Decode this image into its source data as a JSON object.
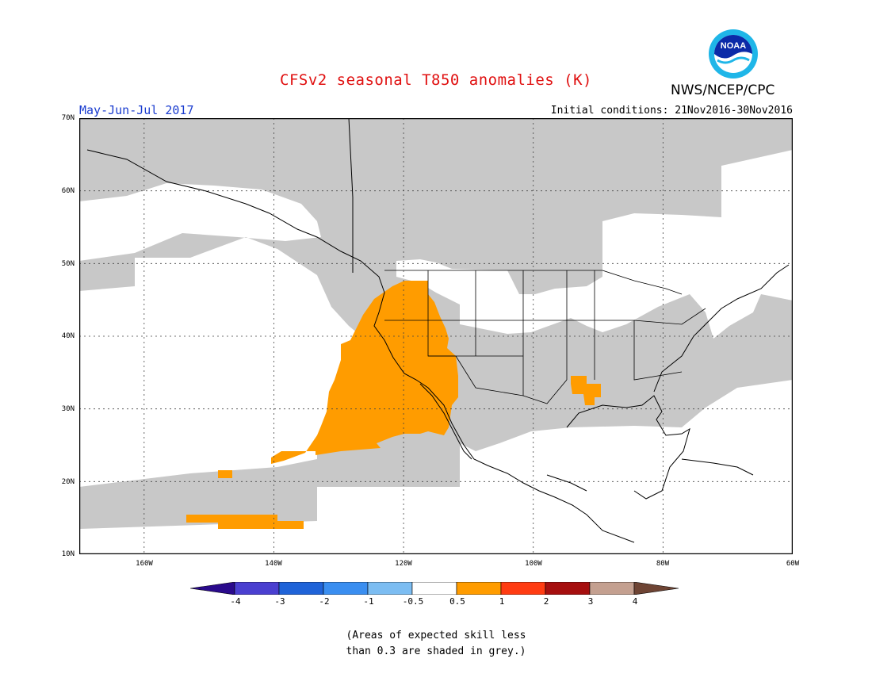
{
  "title": "CFSv2 seasonal T850 anomalies (K)",
  "agency": "NWS/NCEP/CPC",
  "logo_text": "NOAA",
  "season": "May-Jun-Jul 2017",
  "initial_conditions": "Initial conditions: 21Nov2016-30Nov2016",
  "lat_labels": [
    "70N",
    "60N",
    "50N",
    "40N",
    "30N",
    "20N",
    "10N"
  ],
  "lon_labels": [
    "160W",
    "140W",
    "120W",
    "100W",
    "80W",
    "60W"
  ],
  "colorbar": {
    "labels": [
      "-4",
      "-3",
      "-2",
      "-1",
      "-0.5",
      "0.5",
      "1",
      "2",
      "3",
      "4"
    ],
    "colors": [
      "#2a0a8c",
      "#4a3fd0",
      "#1f63d8",
      "#3a8ef0",
      "#7cbdf2",
      "#ffffff",
      "#ff9c00",
      "#ff3c12",
      "#a60f0f",
      "#c4a090",
      "#6e4434"
    ]
  },
  "note": {
    "line1": "(Areas of expected skill less",
    "line2": "than 0.3 are shaded in grey.)"
  },
  "map": {
    "lat_range": [
      10,
      70
    ],
    "lon_range": [
      -170,
      -60
    ],
    "anomaly_region_color": "#ff9c00",
    "low_skill_color": "#c8c8c8"
  }
}
